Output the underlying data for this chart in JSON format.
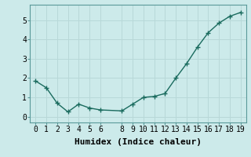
{
  "x": [
    0,
    1,
    2,
    3,
    4,
    5,
    6,
    8,
    9,
    10,
    11,
    12,
    13,
    14,
    15,
    16,
    17,
    18,
    19
  ],
  "y": [
    1.85,
    1.5,
    0.7,
    0.25,
    0.65,
    0.45,
    0.35,
    0.3,
    0.65,
    1.0,
    1.05,
    1.2,
    2.0,
    2.75,
    3.6,
    4.35,
    4.85,
    5.2,
    5.4
  ],
  "line_color": "#1a6b5e",
  "marker": "+",
  "marker_size": 4,
  "background_color": "#cceaea",
  "grid_color": "#b8d8d8",
  "xlabel": "Humidex (Indice chaleur)",
  "xlim": [
    -0.5,
    19.5
  ],
  "ylim": [
    -0.3,
    5.8
  ],
  "xticks": [
    0,
    1,
    2,
    3,
    4,
    5,
    6,
    8,
    9,
    10,
    11,
    12,
    13,
    14,
    15,
    16,
    17,
    18,
    19
  ],
  "yticks": [
    0,
    1,
    2,
    3,
    4,
    5
  ],
  "tick_fontsize": 7,
  "label_fontsize": 8
}
